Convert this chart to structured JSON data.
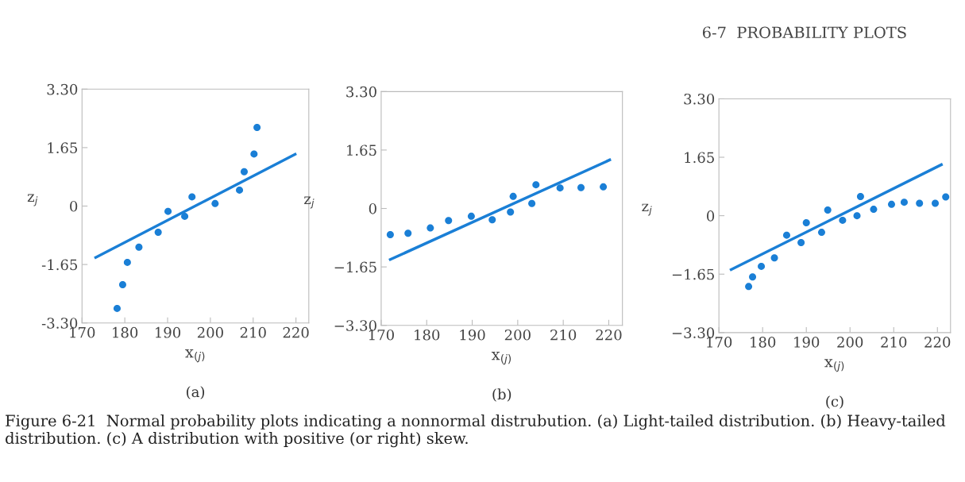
{
  "chart_data": [
    {
      "type": "scatter",
      "xlabel": "x$_{(j)}$",
      "ylabel": "z$_{j}$",
      "xlim": [
        170,
        223
      ],
      "ylim": [
        -3.3,
        3.3
      ],
      "xticks": [
        170,
        180,
        190,
        200,
        210,
        220
      ],
      "yticks": [
        {
          "value": -3.3,
          "label": "-3.30"
        },
        {
          "value": -1.65,
          "label": "-1.65"
        },
        0,
        1.65,
        {
          "value": 3.3,
          "label": "3.30"
        }
      ],
      "series": [
        {
          "marker": "circle",
          "color": "#1a7fd6",
          "x": [
            178.2,
            179.5,
            180.6,
            183.3,
            187.8,
            190.1,
            194.0,
            195.7,
            201.1,
            206.8,
            207.9,
            210.2,
            210.9
          ],
          "values": [
            -2.89,
            -2.22,
            -1.59,
            -1.16,
            -0.74,
            -0.15,
            -0.29,
            0.26,
            0.07,
            0.45,
            0.97,
            1.47,
            2.22
          ]
        },
        {
          "type": "line",
          "color": "#1a7fd6",
          "x": [
            173.2,
            219.8
          ],
          "values": [
            -1.45,
            1.46
          ]
        }
      ],
      "annotations": [
        "(a)",
        "Figure 6-21  Normal probability plots indicating a nonnormal distrubution. (a) Light-tailed distribution. (b) Heavy-tailed distribution. (c) A distribution with positive (or right) skew."
      ]
    },
    {
      "type": "scatter",
      "xlabel": "x$_{(j)}$",
      "ylabel": "z$_{j}$",
      "xlim": [
        170,
        223
      ],
      "ylim": [
        -3.3,
        3.3
      ],
      "xticks": [
        170,
        180,
        190,
        200,
        210,
        220
      ],
      "yticks": [
        {
          "value": -3.3,
          "label": "−3.30"
        },
        {
          "value": -1.65,
          "label": "−1.65"
        },
        0,
        1.65,
        {
          "value": 3.3,
          "label": "3.30"
        }
      ],
      "series": [
        {
          "marker": "circle",
          "color": "#1a7fd6",
          "x": [
            172.0,
            175.9,
            180.8,
            184.8,
            189.8,
            194.4,
            198.4,
            199.0,
            203.1,
            204.0,
            209.3,
            213.9,
            218.8
          ],
          "values": [
            -0.74,
            -0.7,
            -0.55,
            -0.34,
            -0.22,
            -0.32,
            -0.1,
            0.34,
            0.14,
            0.67,
            0.58,
            0.59,
            0.61
          ]
        },
        {
          "type": "line",
          "color": "#1a7fd6",
          "x": [
            172.0,
            220.2
          ],
          "values": [
            -1.44,
            1.37
          ]
        }
      ],
      "annotations": [
        "(b)"
      ]
    },
    {
      "type": "scatter",
      "xlabel": "x$_{(j)}$",
      "ylabel": "z$_{j}$",
      "xlim": [
        170,
        223
      ],
      "ylim": [
        -3.3,
        3.3
      ],
      "xticks": [
        170,
        180,
        190,
        200,
        210,
        220
      ],
      "yticks": [
        {
          "value": -3.3,
          "label": "−3.30"
        },
        {
          "value": -1.65,
          "label": "−1.65"
        },
        0,
        1.65,
        {
          "value": 3.3,
          "label": "3.30"
        }
      ],
      "series": [
        {
          "marker": "circle",
          "color": "#1a7fd6",
          "x": [
            176.8,
            177.7,
            179.7,
            182.7,
            185.5,
            188.8,
            190.0,
            193.5,
            194.9,
            198.3,
            201.6,
            202.4,
            205.4,
            209.5,
            212.4,
            215.9,
            219.5,
            221.9
          ],
          "values": [
            -2.0,
            -1.73,
            -1.43,
            -1.19,
            -0.55,
            -0.76,
            -0.2,
            -0.47,
            0.16,
            -0.13,
            0.0,
            0.54,
            0.18,
            0.32,
            0.38,
            0.35,
            0.35,
            0.53
          ]
        },
        {
          "type": "line",
          "color": "#1a7fd6",
          "x": [
            172.8,
            220.9
          ],
          "values": [
            -1.52,
            1.44
          ]
        }
      ],
      "annotations": [
        "(c)",
        "6-7  PROBABILITY PLOTS"
      ]
    }
  ]
}
